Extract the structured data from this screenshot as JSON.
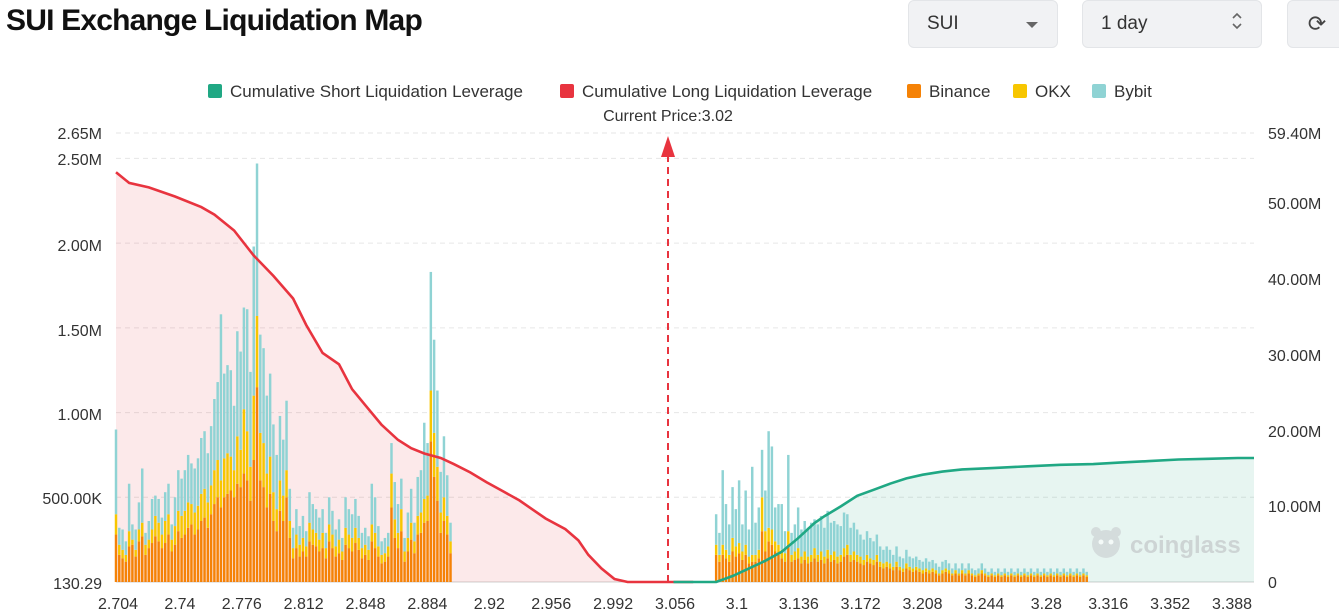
{
  "page": {
    "title": "SUI Exchange Liquidation Map",
    "coin_select": {
      "value": "SUI",
      "icon": "caret-down-icon"
    },
    "range_select": {
      "value": "1 day",
      "icon": "up-down-chevron-icon"
    },
    "refresh_icon": "refresh-icon",
    "refresh_glyph": "⟳",
    "watermark": "coinglass"
  },
  "colors": {
    "short_cum": "#20a884",
    "long_cum": "#e8343f",
    "binance": "#f58206",
    "okx": "#f7c600",
    "bybit": "#8fd3d4",
    "current_price_marker": "#e8343f"
  },
  "chart_data": {
    "type": "bar",
    "current_price_label": "Current Price:3.02",
    "current_price": 3.02,
    "legend": [
      {
        "name": "Cumulative Short Liquidation Leverage",
        "color": "#20a884"
      },
      {
        "name": "Cumulative Long Liquidation Leverage",
        "color": "#e8343f"
      },
      {
        "name": "Binance",
        "color": "#f58206"
      },
      {
        "name": "OKX",
        "color": "#f7c600"
      },
      {
        "name": "Bybit",
        "color": "#8fd3d4"
      }
    ],
    "legend_position": "top-center",
    "x_ticks": [
      "2.704",
      "2.74",
      "2.776",
      "2.812",
      "2.848",
      "2.884",
      "2.92",
      "2.956",
      "2.992",
      "3.056",
      "3.1",
      "3.136",
      "3.172",
      "3.208",
      "3.244",
      "3.28",
      "3.316",
      "3.352",
      "3.388"
    ],
    "y_left_ticks": [
      "2.65M",
      "2.50M",
      "2.00M",
      "1.50M",
      "1.00M",
      "500.00K",
      "130.29"
    ],
    "y_right_ticks": [
      "59.40M",
      "50.00M",
      "40.00M",
      "30.00M",
      "20.00M",
      "10.00M",
      "0"
    ],
    "y_left_range": [
      0,
      2650000
    ],
    "y_right_range": [
      0,
      59400000
    ],
    "x_range": [
      2.704,
      3.398
    ],
    "grid": true,
    "bar_step": 0.002,
    "long_bars": {
      "x_start": 2.704,
      "binance": [
        280,
        160,
        140,
        120,
        210,
        220,
        150,
        240,
        270,
        160,
        200,
        230,
        270,
        240,
        200,
        230,
        280,
        180,
        220,
        300,
        260,
        280,
        320,
        340,
        280,
        310,
        360,
        380,
        320,
        400,
        460,
        500,
        440,
        500,
        520,
        540,
        500,
        580,
        560,
        640,
        600,
        480,
        720,
        1150,
        600,
        560,
        440,
        520,
        360,
        300,
        420,
        360,
        500,
        260,
        140,
        200,
        150,
        180,
        150,
        240,
        220,
        210,
        180,
        200,
        140,
        240,
        200,
        150,
        170,
        130,
        220,
        200,
        180,
        230,
        190,
        140,
        160,
        130,
        240,
        200,
        150,
        110,
        120,
        150,
        440,
        260,
        200,
        300,
        120,
        180,
        250,
        170,
        280,
        290,
        350,
        360,
        830,
        620,
        480,
        290,
        360,
        280,
        170
      ],
      "okx": [
        120,
        60,
        50,
        40,
        90,
        30,
        40,
        70,
        80,
        60,
        50,
        80,
        120,
        110,
        80,
        130,
        120,
        70,
        110,
        120,
        130,
        140,
        150,
        120,
        130,
        140,
        160,
        170,
        150,
        170,
        200,
        220,
        160,
        230,
        240,
        200,
        160,
        280,
        220,
        380,
        290,
        200,
        380,
        420,
        280,
        260,
        200,
        220,
        170,
        130,
        180,
        150,
        160,
        100,
        60,
        80,
        70,
        80,
        60,
        110,
        90,
        80,
        70,
        90,
        60,
        100,
        80,
        60,
        80,
        50,
        100,
        80,
        80,
        90,
        70,
        60,
        60,
        60,
        100,
        90,
        60,
        50,
        50,
        60,
        200,
        110,
        90,
        130,
        60,
        80,
        100,
        70,
        110,
        120,
        140,
        150,
        300,
        260,
        200,
        120,
        140,
        110,
        70
      ],
      "bybit": [
        500,
        100,
        120,
        80,
        280,
        90,
        120,
        160,
        320,
        70,
        110,
        180,
        120,
        140,
        100,
        170,
        180,
        90,
        170,
        240,
        220,
        240,
        280,
        240,
        260,
        280,
        330,
        340,
        290,
        350,
        420,
        460,
        980,
        500,
        520,
        510,
        380,
        620,
        580,
        600,
        720,
        560,
        880,
        900,
        580,
        560,
        460,
        490,
        400,
        320,
        380,
        330,
        410,
        190,
        120,
        150,
        110,
        130,
        90,
        180,
        150,
        140,
        130,
        140,
        90,
        160,
        140,
        100,
        120,
        80,
        180,
        150,
        140,
        170,
        130,
        90,
        100,
        80,
        240,
        210,
        120,
        80,
        90,
        80,
        180,
        220,
        170,
        180,
        80,
        150,
        200,
        110,
        230,
        250,
        450,
        310,
        700,
        550,
        450,
        240,
        360,
        240,
        110
      ]
    },
    "short_bars": {
      "x_start": 3.07,
      "binance": [
        160,
        120,
        160,
        140,
        120,
        180,
        150,
        170,
        130,
        160,
        110,
        120,
        120,
        140,
        300,
        180,
        240,
        220,
        180,
        160,
        140,
        120,
        220,
        120,
        130,
        140,
        110,
        130,
        110,
        120,
        140,
        120,
        130,
        110,
        140,
        120,
        130,
        110,
        120,
        150,
        160,
        120,
        130,
        120,
        110,
        100,
        120,
        110,
        100,
        120,
        90,
        80,
        90,
        80,
        70,
        90,
        70,
        60,
        80,
        70,
        60,
        70,
        60,
        50,
        60,
        50,
        60,
        50,
        40,
        50,
        60,
        50,
        40,
        50,
        40,
        50,
        40,
        50,
        40,
        30,
        40,
        50,
        40,
        30,
        40,
        30,
        40,
        30,
        40,
        30,
        40,
        30,
        40,
        30,
        40,
        30,
        40,
        30,
        40,
        30,
        40,
        30,
        40,
        30,
        40,
        30,
        40,
        30,
        40,
        30,
        40,
        30,
        40,
        30
      ],
      "okx": [
        60,
        40,
        60,
        50,
        40,
        80,
        60,
        60,
        50,
        60,
        40,
        40,
        40,
        50,
        200,
        120,
        80,
        90,
        60,
        60,
        50,
        50,
        80,
        40,
        50,
        60,
        40,
        50,
        40,
        40,
        60,
        40,
        50,
        40,
        50,
        40,
        50,
        40,
        40,
        50,
        60,
        40,
        50,
        40,
        40,
        30,
        40,
        30,
        30,
        40,
        30,
        30,
        30,
        30,
        20,
        30,
        20,
        20,
        30,
        20,
        20,
        20,
        20,
        20,
        20,
        20,
        20,
        20,
        10,
        20,
        20,
        20,
        10,
        20,
        10,
        20,
        10,
        20,
        10,
        10,
        10,
        20,
        10,
        10,
        10,
        10,
        10,
        10,
        10,
        10,
        10,
        10,
        10,
        10,
        10,
        10,
        10,
        10,
        10,
        10,
        10,
        10,
        10,
        10,
        10,
        10,
        10,
        10,
        10,
        10,
        10,
        10,
        10,
        10
      ],
      "bybit": [
        180,
        130,
        440,
        270,
        180,
        300,
        220,
        370,
        160,
        320,
        160,
        520,
        190,
        250,
        280,
        240,
        570,
        490,
        200,
        240,
        270,
        130,
        450,
        130,
        160,
        240,
        160,
        180,
        170,
        190,
        170,
        180,
        210,
        170,
        230,
        190,
        180,
        190,
        170,
        210,
        180,
        160,
        170,
        150,
        130,
        120,
        140,
        120,
        110,
        120,
        90,
        80,
        90,
        80,
        70,
        90,
        60,
        60,
        80,
        60,
        60,
        60,
        50,
        50,
        60,
        50,
        50,
        40,
        40,
        50,
        50,
        40,
        30,
        40,
        30,
        40,
        30,
        40,
        30,
        30,
        30,
        40,
        30,
        20,
        30,
        20,
        30,
        20,
        30,
        20,
        30,
        20,
        30,
        20,
        30,
        20,
        30,
        20,
        30,
        20,
        30,
        20,
        30,
        20,
        30,
        20,
        30,
        20,
        30,
        20,
        30,
        20,
        30,
        20
      ]
    },
    "cum_long": {
      "x": [
        2.704,
        2.712,
        2.724,
        2.74,
        2.756,
        2.764,
        2.776,
        2.788,
        2.8,
        2.812,
        2.82,
        2.83,
        2.84,
        2.848,
        2.856,
        2.866,
        2.876,
        2.884,
        2.892,
        2.902,
        2.91,
        2.92,
        2.93,
        2.94,
        2.95,
        2.956,
        2.966,
        2.978,
        2.986,
        2.992,
        3.0,
        3.008,
        3.016,
        3.024,
        3.032,
        3.04,
        3.048,
        3.056
      ],
      "y": [
        54.2,
        52.8,
        52.2,
        51.0,
        49.6,
        48.6,
        46.5,
        43.2,
        40.5,
        37.5,
        34.0,
        30.3,
        28.8,
        25.5,
        23.4,
        20.8,
        18.8,
        17.7,
        17.0,
        16.4,
        15.6,
        14.5,
        13.2,
        12.0,
        10.8,
        9.9,
        8.4,
        7.0,
        5.5,
        3.6,
        1.8,
        0.4,
        0.0,
        0.0,
        0.0,
        0.0,
        0.0,
        0.0
      ]
    },
    "cum_short": {
      "x": [
        3.044,
        3.056,
        3.064,
        3.07,
        3.08,
        3.09,
        3.1,
        3.11,
        3.12,
        3.13,
        3.136,
        3.146,
        3.156,
        3.166,
        3.176,
        3.186,
        3.196,
        3.208,
        3.22,
        3.24,
        3.26,
        3.28,
        3.3,
        3.316,
        3.334,
        3.352,
        3.37,
        3.388,
        3.398
      ],
      "y": [
        0.0,
        0.0,
        0.0,
        0.0,
        0.8,
        1.8,
        2.8,
        4.0,
        5.8,
        7.8,
        8.7,
        10.0,
        11.4,
        12.2,
        13.0,
        13.7,
        14.2,
        14.6,
        14.9,
        15.1,
        15.3,
        15.5,
        15.6,
        15.8,
        16.0,
        16.2,
        16.3,
        16.4,
        16.4
      ]
    }
  }
}
